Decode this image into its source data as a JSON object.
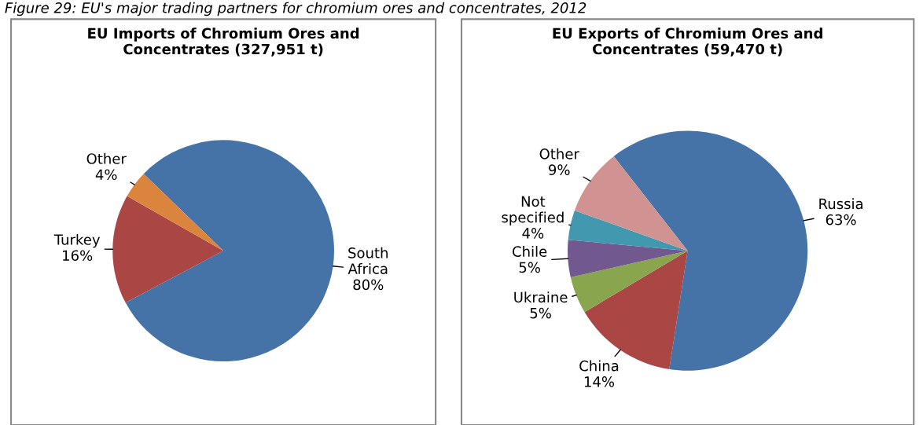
{
  "chart_data": [
    {
      "type": "pie",
      "title": "EU Imports of Chromium Ores and\nConcentrates (327,951 t)",
      "annotations": [
        "Figure 29: EU's major trading partners for chromium ores and concentrates, 2012"
      ],
      "categories": [
        "South\nAfrica",
        "Turkey",
        "Other"
      ],
      "values": [
        80,
        16,
        4
      ],
      "colors": [
        "#4572a7",
        "#aa4643",
        "#db843d"
      ],
      "value_labels": [
        "80%",
        "16%",
        "4%"
      ]
    },
    {
      "type": "pie",
      "title": "EU Exports of Chromium Ores and\nConcentrates (59,470 t)",
      "categories": [
        "Russia",
        "China",
        "Ukraine",
        "Chile",
        "Not\nspecified",
        "Other"
      ],
      "values": [
        63,
        14,
        5,
        5,
        4,
        9
      ],
      "colors": [
        "#4572a7",
        "#aa4643",
        "#89a54e",
        "#71588f",
        "#4198af",
        "#d09392"
      ],
      "value_labels": [
        "63%",
        "14%",
        "5%",
        "5%",
        "4%",
        "9%"
      ]
    }
  ]
}
